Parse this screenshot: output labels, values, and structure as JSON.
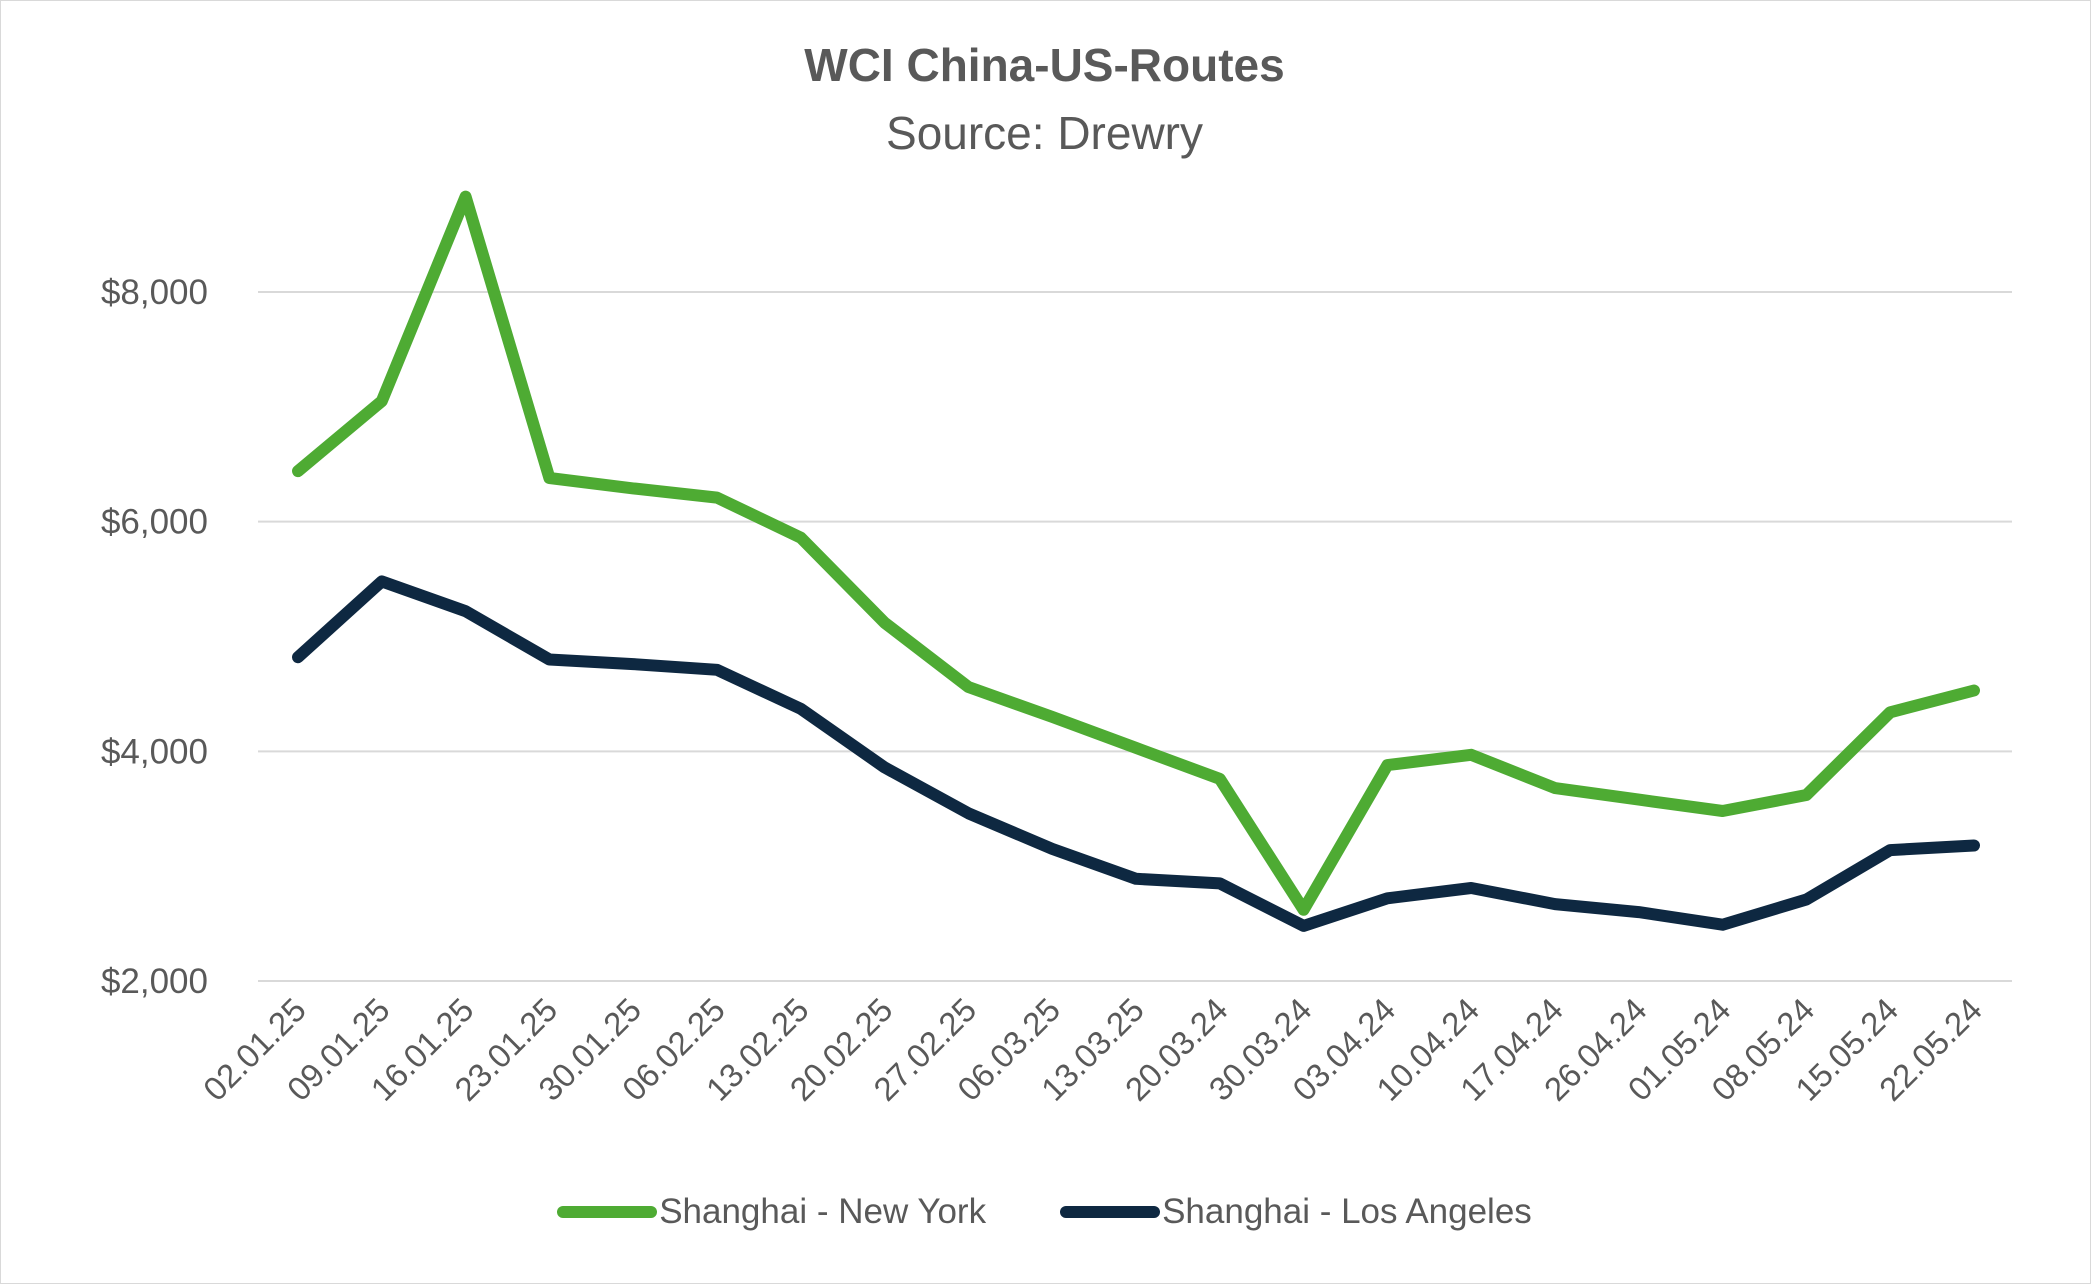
{
  "chart_data": {
    "type": "line",
    "title": "WCI China-US-Routes",
    "subtitle": "Source: Drewry",
    "xlabel": "",
    "ylabel": "",
    "ylim": [
      2000,
      9000
    ],
    "yticks": [
      2000,
      4000,
      6000,
      8000
    ],
    "ytick_labels": [
      "$2,000",
      "$4,000",
      "$6,000",
      "$8,000"
    ],
    "grid": true,
    "legend_position": "bottom",
    "categories": [
      "02.01.25",
      "09.01.25",
      "16.01.25",
      "23.01.25",
      "30.01.25",
      "06.02.25",
      "13.02.25",
      "20.02.25",
      "27.02.25",
      "06.03.25",
      "13.03.25",
      "20.03.24",
      "30.03.24",
      "03.04.24",
      "10.04.24",
      "17.04.24",
      "26.04.24",
      "01.05.24",
      "08.05.24",
      "15.05.24",
      "22.05.24"
    ],
    "series": [
      {
        "name": "Shanghai - New York",
        "color": "#4eab33",
        "values": [
          6440,
          7050,
          8830,
          6380,
          6290,
          6210,
          5860,
          5120,
          4560,
          4300,
          4030,
          3760,
          2620,
          3880,
          3970,
          3680,
          3580,
          3480,
          3620,
          4340,
          4530
        ]
      },
      {
        "name": "Shanghai - Los Angeles",
        "color": "#0e2841",
        "values": [
          4820,
          5480,
          5220,
          4800,
          4760,
          4710,
          4370,
          3860,
          3460,
          3150,
          2890,
          2850,
          2480,
          2720,
          2810,
          2670,
          2600,
          2490,
          2710,
          3140,
          3180
        ]
      }
    ]
  }
}
